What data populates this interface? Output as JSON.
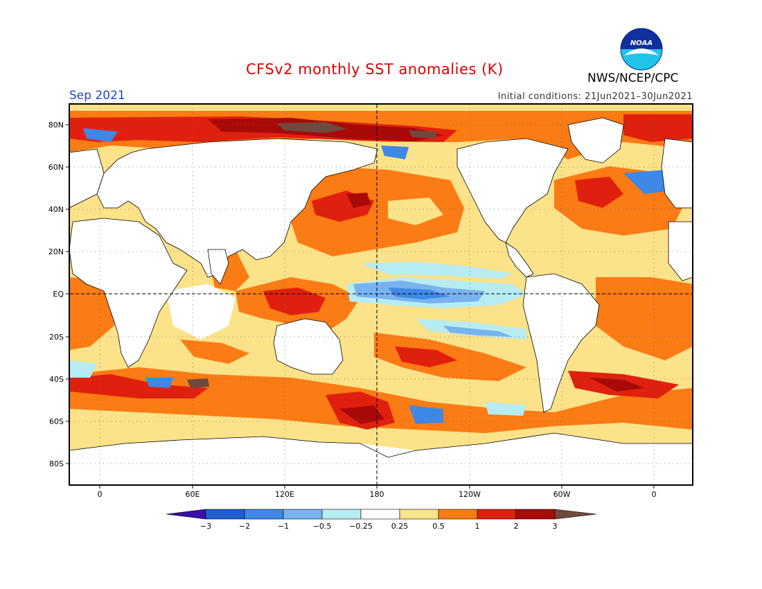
{
  "header": {
    "title": "CFSv2 monthly SST anomalies (K)",
    "valid_month": "Sep 2021",
    "initial_conditions": "Initial conditions: 21Jun2021–30Jun2021",
    "agency": "NWS/NCEP/CPC",
    "logo_text": "NOAA"
  },
  "axes": {
    "lat_labels": [
      "80N",
      "60N",
      "40N",
      "20N",
      "EQ",
      "20S",
      "40S",
      "60S",
      "80S"
    ],
    "lon_labels": [
      "0",
      "60E",
      "120E",
      "180",
      "120W",
      "60W",
      "0"
    ]
  },
  "colorbar": {
    "ticks": [
      "−3",
      "−2",
      "−1",
      "−0.5",
      "−0.25",
      "0.25",
      "0.5",
      "1",
      "2",
      "3"
    ],
    "colors": [
      "#3a10a8",
      "#1f5fcf",
      "#3f88e6",
      "#79b3ef",
      "#b7ecf3",
      "#ffffff",
      "#fce289",
      "#fb7b14",
      "#e0200e",
      "#a80a0a",
      "#6e4a3e"
    ]
  },
  "colors": {
    "land": "#ffffff",
    "ocean_base": "#fce289",
    "warm": "#fb7b14",
    "hot": "#e0200e",
    "veryhot": "#a80a0a",
    "extreme": "#6e4a3e",
    "cool": "#b7ecf3",
    "cold": "#79b3ef",
    "colder": "#3f88e6"
  }
}
